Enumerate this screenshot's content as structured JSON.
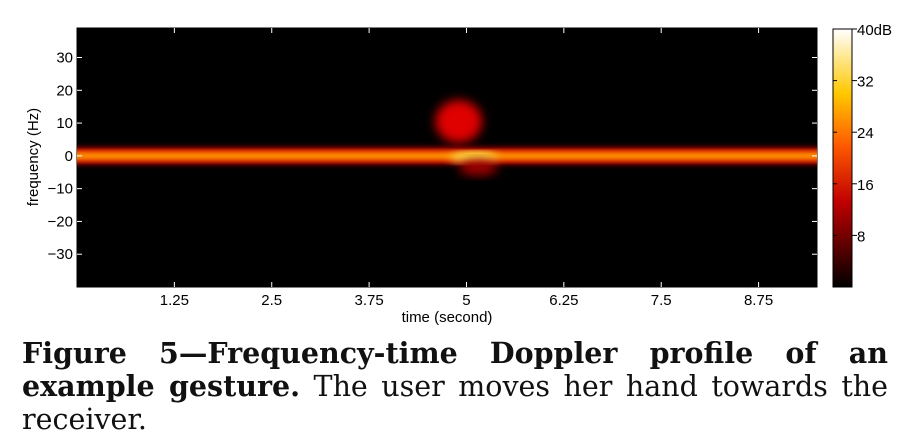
{
  "chart_data": {
    "type": "heatmap",
    "title": "",
    "xlabel": "time (second)",
    "ylabel": "frequency (Hz)",
    "xlim": [
      0,
      9.5
    ],
    "ylim": [
      -40,
      39
    ],
    "x_ticks": [
      1.25,
      2.5,
      3.75,
      5,
      6.25,
      7.5,
      8.75
    ],
    "x_tick_labels": [
      "1.25",
      "2.5",
      "3.75",
      "5",
      "6.25",
      "7.5",
      "8.75"
    ],
    "y_ticks": [
      30,
      20,
      10,
      0,
      -10,
      -20,
      -30
    ],
    "y_tick_labels": [
      "30",
      "20",
      "10",
      "0",
      "−10",
      "−20",
      "−30"
    ],
    "colorbar": {
      "range": [
        0,
        40
      ],
      "ticks": [
        8,
        16,
        24,
        32,
        40
      ],
      "tick_labels": [
        "8",
        "16",
        "24",
        "32",
        "40dB"
      ],
      "colormap": "hot"
    },
    "background_color": "#000000",
    "regions": [
      {
        "name": "carrier",
        "x": [
          0,
          9.5
        ],
        "y": [
          -1.5,
          1.5
        ],
        "level_db": 26
      },
      {
        "name": "gesture-core",
        "x": [
          4.8,
          5.4
        ],
        "y": [
          -2,
          1
        ],
        "level_db": 35
      },
      {
        "name": "gesture-upper",
        "x": [
          4.6,
          5.2
        ],
        "y": [
          4,
          17
        ],
        "level_db": 14
      },
      {
        "name": "gesture-lower",
        "x": [
          4.9,
          5.4
        ],
        "y": [
          -6,
          -1
        ],
        "level_db": 10
      }
    ]
  },
  "caption": {
    "bold": "Figure 5—Frequency-time Doppler profile of an example gesture.",
    "text": " The user moves her hand towards the receiver."
  }
}
